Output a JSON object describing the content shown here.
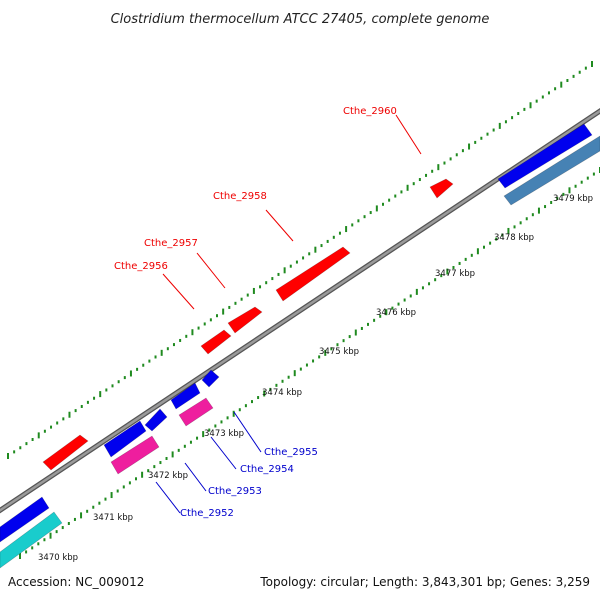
{
  "title": "Clostridium thermocellum ATCC 27405, complete genome",
  "footer": {
    "accession": "Accession: NC_009012",
    "topology": "Topology: circular; Length: 3,843,301 bp; Genes: 3,259"
  },
  "colors": {
    "backbone": "#7f7f7f",
    "tick_dots": "#1f8a1f",
    "forward_gene": "#ff0000",
    "reverse_gene": "#0000ee",
    "pink_feature": "#ee1e9e",
    "cyan_feature": "#19cccc",
    "steel_feature": "#4682b4",
    "label_forward": "#ee0000",
    "label_reverse": "#0000cc"
  },
  "axis": {
    "unit": "kbp",
    "ticks": [
      "3470 kbp",
      "3471 kbp",
      "3472 kbp",
      "3473 kbp",
      "3474 kbp",
      "3475 kbp",
      "3476 kbp",
      "3477 kbp",
      "3478 kbp",
      "3479 kbp"
    ]
  },
  "gene_labels": {
    "forward": [
      "Cthe_2956",
      "Cthe_2957",
      "Cthe_2958",
      "Cthe_2960"
    ],
    "reverse": [
      "Cthe_2952",
      "Cthe_2953",
      "Cthe_2954",
      "Cthe_2955"
    ]
  },
  "features": [
    {
      "name": "forward-gene-1",
      "strand": "forward",
      "color": "forward_gene"
    },
    {
      "name": "forward-gene-2",
      "strand": "forward",
      "color": "forward_gene"
    },
    {
      "name": "forward-gene-3",
      "strand": "forward",
      "color": "forward_gene"
    },
    {
      "name": "forward-gene-4",
      "strand": "forward",
      "color": "forward_gene"
    },
    {
      "name": "forward-gene-5",
      "strand": "forward",
      "color": "forward_gene"
    },
    {
      "name": "reverse-gene-1",
      "strand": "reverse",
      "color": "reverse_gene"
    },
    {
      "name": "reverse-gene-2",
      "strand": "reverse",
      "color": "reverse_gene"
    },
    {
      "name": "reverse-gene-3",
      "strand": "reverse",
      "color": "reverse_gene"
    },
    {
      "name": "reverse-gene-4",
      "strand": "reverse",
      "color": "reverse_gene"
    },
    {
      "name": "reverse-gene-5",
      "strand": "reverse",
      "color": "reverse_gene"
    },
    {
      "name": "reverse-gene-6",
      "strand": "reverse",
      "color": "reverse_gene"
    },
    {
      "name": "pink-feature-1",
      "strand": "reverse",
      "color": "pink_feature"
    },
    {
      "name": "pink-feature-2",
      "strand": "reverse",
      "color": "pink_feature"
    },
    {
      "name": "cyan-feature",
      "strand": "reverse",
      "color": "cyan_feature"
    },
    {
      "name": "steel-feature",
      "strand": "reverse",
      "color": "steel_feature"
    }
  ]
}
